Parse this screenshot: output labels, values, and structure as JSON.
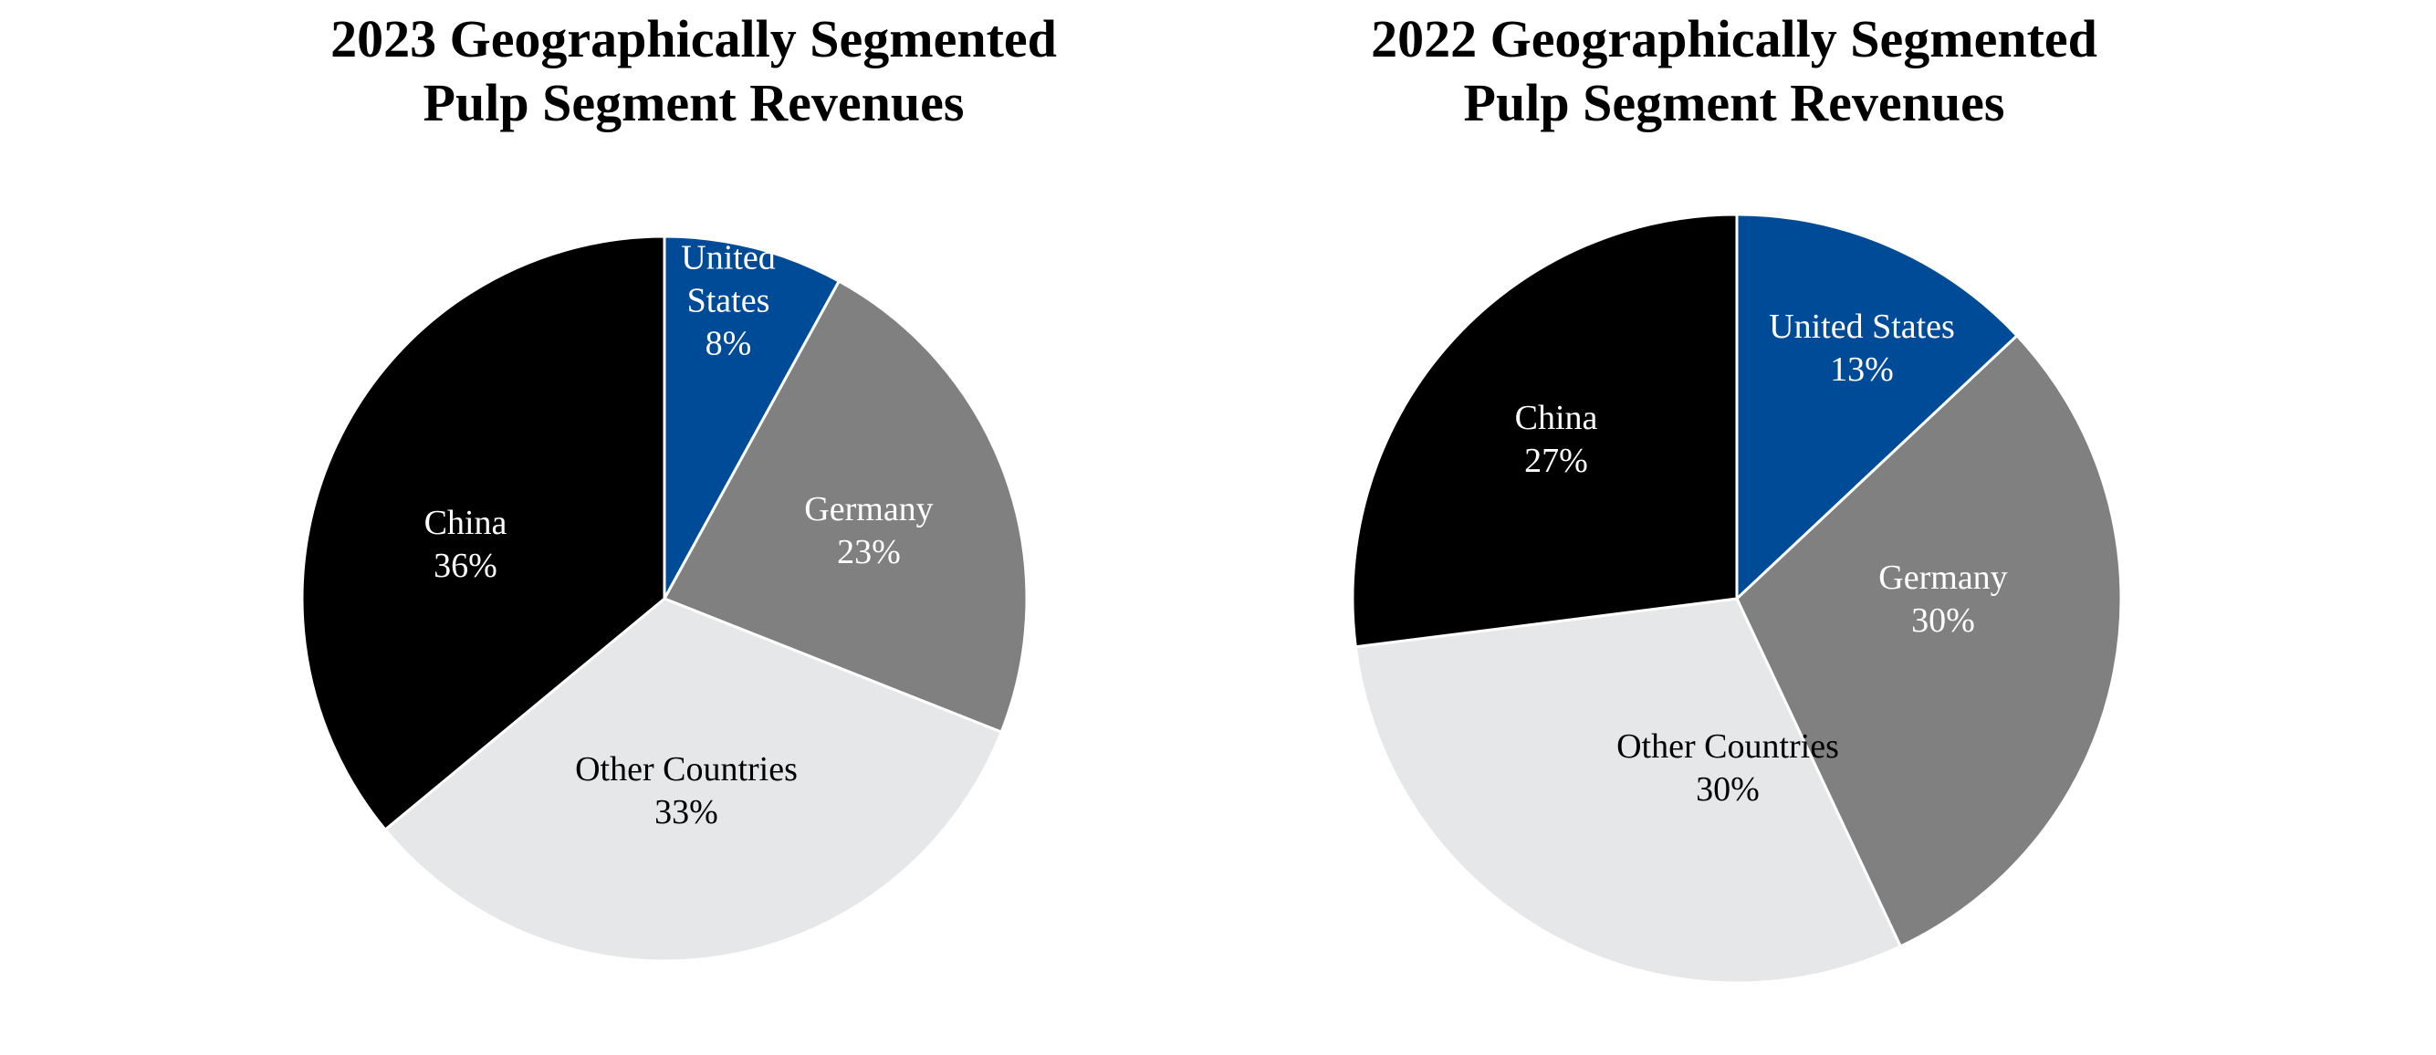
{
  "chart_data": [
    {
      "type": "pie",
      "title": [
        "2023 Geographically Segmented",
        "Pulp Segment Revenues"
      ],
      "slices": [
        {
          "label": [
            "United",
            "States"
          ],
          "value": 8,
          "display": "8%",
          "color": "#004B98",
          "text_color": "#ffffff"
        },
        {
          "label": [
            "Germany"
          ],
          "value": 23,
          "display": "23%",
          "color": "#808080",
          "text_color": "#ffffff"
        },
        {
          "label": [
            "Other Countries"
          ],
          "value": 33,
          "display": "33%",
          "color": "#E6E7E8",
          "text_color": "#000000"
        },
        {
          "label": [
            "China"
          ],
          "value": 36,
          "display": "36%",
          "color": "#000000",
          "text_color": "#ffffff"
        }
      ]
    },
    {
      "type": "pie",
      "title": [
        "2022 Geographically Segmented",
        "Pulp Segment Revenues"
      ],
      "slices": [
        {
          "label": [
            "United States"
          ],
          "value": 13,
          "display": "13%",
          "color": "#004B98",
          "text_color": "#ffffff"
        },
        {
          "label": [
            "Germany"
          ],
          "value": 30,
          "display": "30%",
          "color": "#808080",
          "text_color": "#ffffff"
        },
        {
          "label": [
            "Other Countries"
          ],
          "value": 30,
          "display": "30%",
          "color": "#E6E7E8",
          "text_color": "#000000"
        },
        {
          "label": [
            "China"
          ],
          "value": 27,
          "display": "27%",
          "color": "#000000",
          "text_color": "#ffffff"
        }
      ]
    }
  ]
}
